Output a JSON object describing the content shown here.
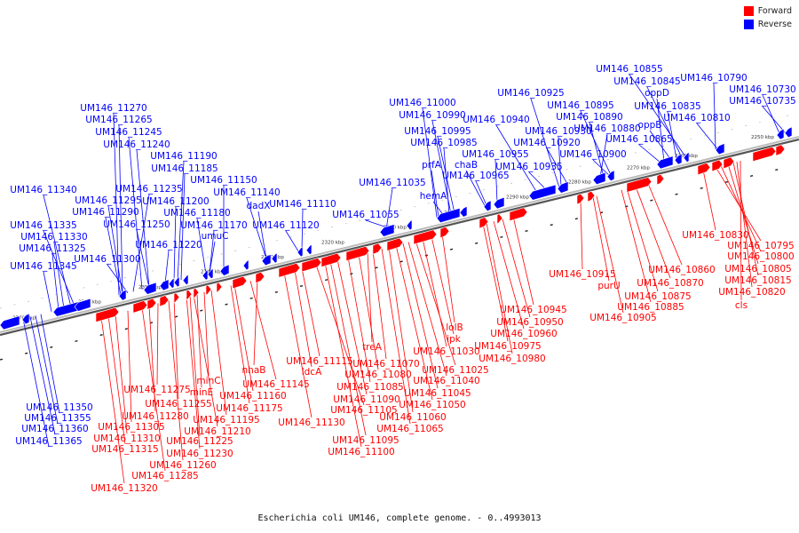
{
  "legend": {
    "forward_label": "Forward",
    "reverse_label": "Reverse",
    "forward_color": "#ff0000",
    "reverse_color": "#0000ff"
  },
  "caption": "Escherichia coli UM146, complete genome. - 0..4993013",
  "ticks": [
    "2250 kbp",
    "2260 kbp",
    "2270 kbp",
    "2280 kbp",
    "2290 kbp",
    "2300 kbp",
    "2310 kbp",
    "2320 kbp",
    "2330 kbp",
    "2340 kbp",
    "2350 kbp",
    "2360 kbp",
    "2370 kbp"
  ],
  "reverse_genes": [
    "UM146_10730",
    "UM146_10735",
    "UM146_10790",
    "UM146_10810",
    "UM146_10835",
    "UM146_10845",
    "UM146_10855",
    "oppD",
    "oppB",
    "UM146_10865",
    "UM146_10880",
    "UM146_10890",
    "UM146_10895",
    "UM146_10900",
    "UM146_10920",
    "UM146_10925",
    "UM146_10930",
    "UM146_10935",
    "UM146_10940",
    "UM146_10955",
    "UM146_10965",
    "chaB",
    "UM146_10985",
    "UM146_10995",
    "UM146_10990",
    "UM146_11000",
    "prfA",
    "hemA",
    "UM146_11035",
    "UM146_11055",
    "UM146_11110",
    "UM146_11120",
    "dadX",
    "UM146_11140",
    "UM146_11150",
    "UM146_11170",
    "umuC",
    "UM146_11180",
    "UM146_11185",
    "UM146_11190",
    "UM146_11200",
    "UM146_11220",
    "UM146_11240",
    "UM146_11245",
    "UM146_11250",
    "UM146_11235",
    "UM146_11265",
    "UM146_11270",
    "UM146_11290",
    "UM146_11295",
    "UM146_11300",
    "UM146_11325",
    "UM146_11330",
    "UM146_11335",
    "UM146_11340",
    "UM146_11345",
    "UM146_11350",
    "UM146_11355",
    "UM146_11360",
    "UM146_11365"
  ],
  "forward_genes": [
    "UM146_10830",
    "UM146_10795",
    "UM146_10800",
    "UM146_10805",
    "UM146_10815",
    "UM146_10820",
    "cls",
    "UM146_10860",
    "UM146_10870",
    "UM146_10875",
    "UM146_10885",
    "UM146_10905",
    "UM146_10915",
    "purU",
    "UM146_10945",
    "UM146_10950",
    "UM146_10960",
    "UM146_10975",
    "UM146_10980",
    "lolB",
    "ipk",
    "UM146_11030",
    "UM146_11025",
    "UM146_11040",
    "UM146_11045",
    "UM146_11050",
    "UM146_11060",
    "UM146_11065",
    "treA",
    "UM146_11070",
    "UM146_11080",
    "UM146_11085",
    "UM146_11090",
    "UM146_11095",
    "UM146_11100",
    "UM146_11105",
    "UM146_11115",
    "ldcA",
    "UM146_11130",
    "nhaB",
    "UM146_11145",
    "UM146_11160",
    "UM146_11175",
    "UM146_11195",
    "minC",
    "minE",
    "UM146_11210",
    "UM146_11225",
    "UM146_11230",
    "UM146_11255",
    "UM146_11260",
    "UM146_11275",
    "UM146_11280",
    "UM146_11285",
    "UM146_11305",
    "UM146_11310",
    "UM146_11315",
    "UM146_11320"
  ]
}
